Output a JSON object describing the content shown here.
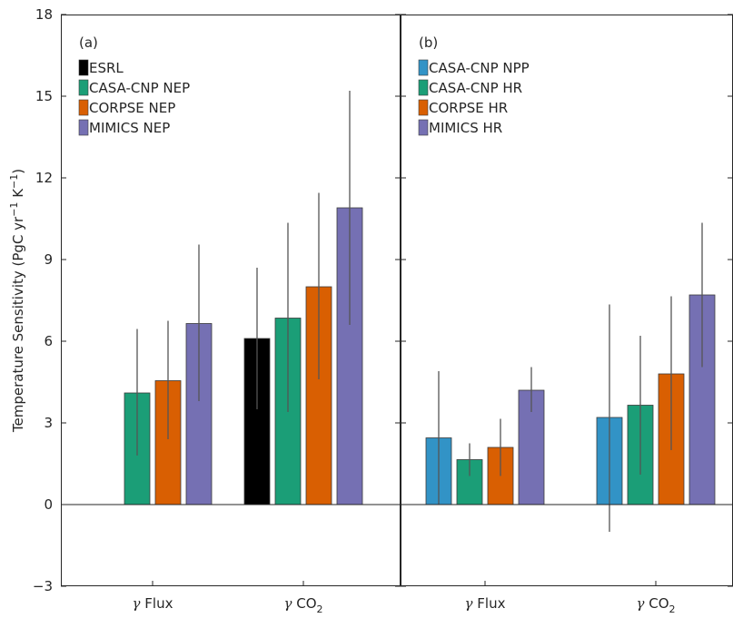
{
  "chart_data": {
    "type": "bar",
    "ylabel_parts": [
      "Temperature Sensitivity (PgC yr",
      "−1",
      " K",
      "−1",
      ")"
    ],
    "ylim": [
      -3,
      18
    ],
    "yticks": [
      -3,
      0,
      3,
      6,
      9,
      12,
      15,
      18
    ],
    "ytick_labels": [
      "−3",
      "0",
      "3",
      "6",
      "9",
      "12",
      "15",
      "18"
    ],
    "grid": false,
    "panels": [
      {
        "tag": "(a)",
        "legend_position": "top-left",
        "categories": [
          {
            "greek": "γ",
            "label": "Flux",
            "sub": ""
          },
          {
            "greek": "γ",
            "label": "CO",
            "sub": "2"
          }
        ],
        "series": [
          {
            "name": "ESRL",
            "color": "#000000",
            "values": [
              null,
              6.1
            ],
            "err_low": [
              null,
              3.5
            ],
            "err_high": [
              null,
              8.7
            ]
          },
          {
            "name": "CASA-CNP NEP",
            "color": "#1b9e77",
            "values": [
              4.1,
              6.85
            ],
            "err_low": [
              1.8,
              3.4
            ],
            "err_high": [
              6.45,
              10.35
            ]
          },
          {
            "name": "CORPSE NEP",
            "color": "#d95f02",
            "values": [
              4.55,
              8.0
            ],
            "err_low": [
              2.4,
              4.6
            ],
            "err_high": [
              6.75,
              11.45
            ]
          },
          {
            "name": "MIMICS NEP",
            "color": "#7570b3",
            "values": [
              6.65,
              10.9
            ],
            "err_low": [
              3.8,
              6.6
            ],
            "err_high": [
              9.55,
              15.2
            ]
          }
        ]
      },
      {
        "tag": "(b)",
        "legend_position": "top-left",
        "categories": [
          {
            "greek": "γ",
            "label": "Flux",
            "sub": ""
          },
          {
            "greek": "γ",
            "label": "CO",
            "sub": "2"
          }
        ],
        "series": [
          {
            "name": "CASA-CNP NPP",
            "color": "#3293c6",
            "values": [
              2.45,
              3.2
            ],
            "err_low": [
              0.0,
              -1.0
            ],
            "err_high": [
              4.9,
              7.35
            ]
          },
          {
            "name": "CASA-CNP HR",
            "color": "#1b9e77",
            "values": [
              1.65,
              3.65
            ],
            "err_low": [
              1.05,
              1.1
            ],
            "err_high": [
              2.25,
              6.2
            ]
          },
          {
            "name": "CORPSE HR",
            "color": "#d95f02",
            "values": [
              2.1,
              4.8
            ],
            "err_low": [
              1.05,
              2.0
            ],
            "err_high": [
              3.15,
              7.65
            ]
          },
          {
            "name": "MIMICS HR",
            "color": "#7570b3",
            "values": [
              4.2,
              7.7
            ],
            "err_low": [
              3.4,
              5.05
            ],
            "err_high": [
              5.05,
              10.35
            ]
          }
        ]
      }
    ]
  }
}
